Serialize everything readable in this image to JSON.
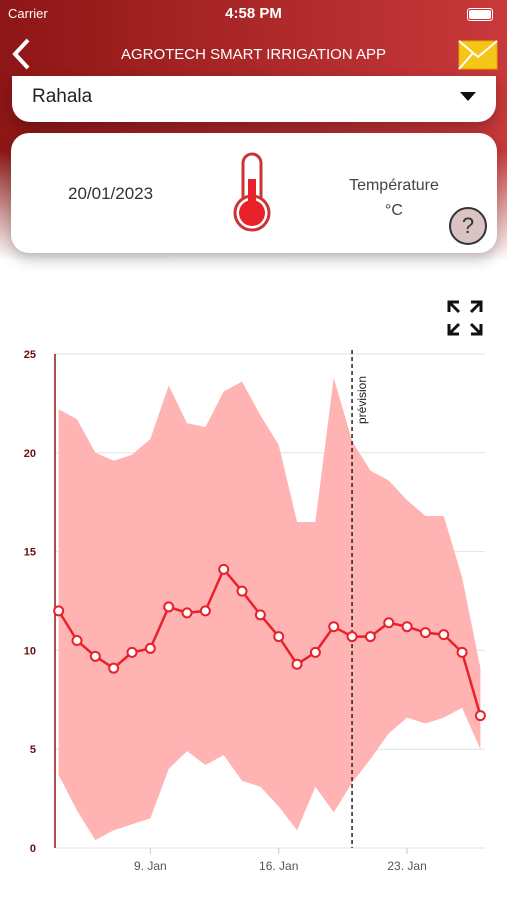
{
  "status_bar": {
    "carrier": "Carrier",
    "time": "4:58 PM"
  },
  "header": {
    "title": "AGROTECH SMART IRRIGATION APP"
  },
  "dropdown": {
    "selected": "Rahala"
  },
  "info_card": {
    "date": "20/01/2023",
    "measure": "Température",
    "unit": "°C",
    "help": "?"
  },
  "chart_data": {
    "type": "line",
    "x": [
      4,
      5,
      6,
      7,
      8,
      9,
      10,
      11,
      12,
      13,
      14,
      15,
      16,
      17,
      18,
      19,
      20,
      21,
      22,
      23,
      24,
      25,
      26,
      27
    ],
    "values": [
      12.0,
      10.5,
      9.7,
      9.1,
      9.9,
      10.1,
      12.2,
      11.9,
      12.0,
      14.1,
      13.0,
      11.8,
      10.7,
      9.3,
      9.9,
      11.2,
      10.7,
      10.7,
      11.4,
      11.2,
      10.9,
      10.8,
      9.9,
      6.7
    ],
    "upper": [
      22.2,
      21.7,
      20.0,
      19.6,
      19.9,
      20.7,
      23.4,
      21.5,
      21.3,
      23.1,
      23.6,
      21.9,
      20.4,
      16.5,
      16.5,
      23.8,
      20.6,
      19.1,
      18.6,
      17.6,
      16.8,
      16.8,
      13.7,
      9.1
    ],
    "lower": [
      3.7,
      1.9,
      0.4,
      0.9,
      1.2,
      1.5,
      4.0,
      4.9,
      4.2,
      4.7,
      3.4,
      3.1,
      2.1,
      0.9,
      3.1,
      1.8,
      3.3,
      4.5,
      5.8,
      6.6,
      6.3,
      6.6,
      7.1,
      5.0
    ],
    "color": "#e8212b",
    "band_color": "#ffb3b3",
    "xlim": [
      3.8,
      27.25
    ],
    "ylim": [
      0,
      25
    ],
    "xticks": [
      {
        "value": 9,
        "label": "9. Jan"
      },
      {
        "value": 16,
        "label": "16. Jan"
      },
      {
        "value": 23,
        "label": "23. Jan"
      }
    ],
    "yticks": [
      0,
      5,
      10,
      15,
      20,
      25
    ],
    "grid": true,
    "forecast": {
      "x": 20,
      "label": "prévision"
    }
  }
}
